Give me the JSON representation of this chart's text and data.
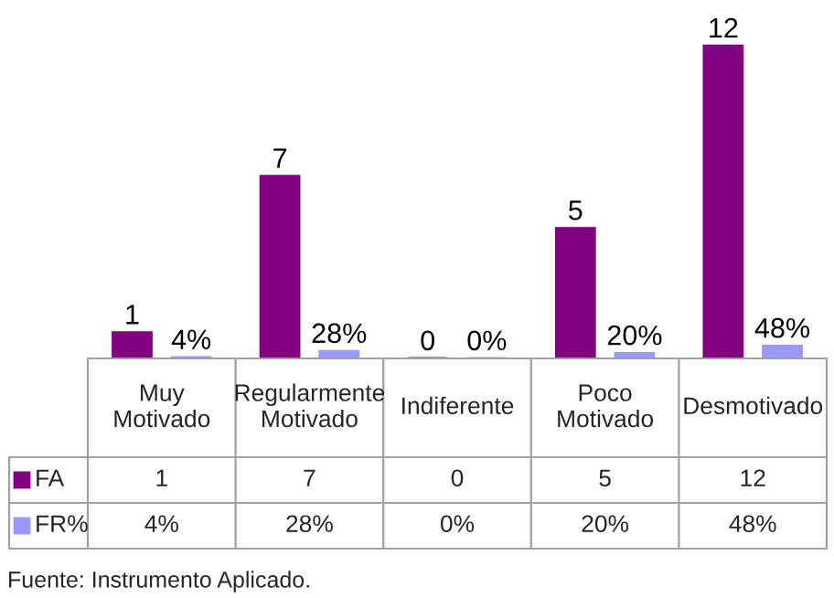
{
  "chart_data": {
    "type": "bar",
    "categories": [
      "Muy Motivado",
      "Regularmente Motivado",
      "Indiferente",
      "Poco Motivado",
      "Desmotivado"
    ],
    "series": [
      {
        "name": "FA",
        "color": "#800080",
        "values": [
          1,
          7,
          0,
          5,
          12
        ],
        "value_labels": [
          "1",
          "7",
          "0",
          "5",
          "12"
        ]
      },
      {
        "name": "FR%",
        "color": "#9999ff",
        "values": [
          0.04,
          0.28,
          0,
          0.2,
          0.48
        ],
        "value_labels": [
          "4%",
          "28%",
          "0%",
          "20%",
          "48%"
        ]
      }
    ],
    "legend": "bottom left",
    "annotations": [
      "Fuente: Instrumento Aplicado."
    ]
  }
}
